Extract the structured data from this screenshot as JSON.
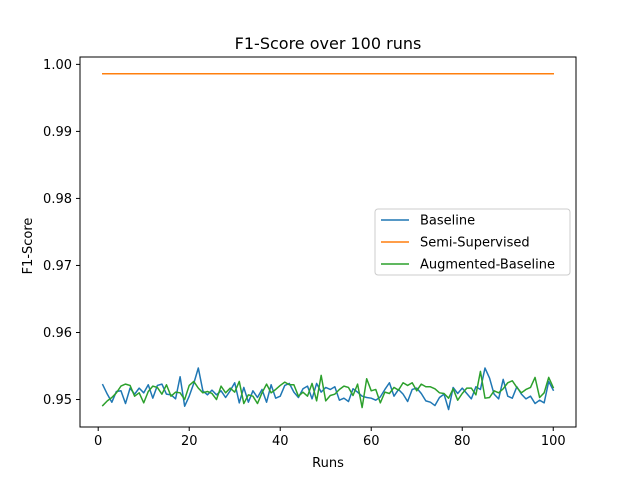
{
  "chart_data": {
    "type": "line",
    "title": "F1-Score over 100 runs",
    "xlabel": "Runs",
    "ylabel": "F1-Score",
    "xlim": [
      -4,
      105
    ],
    "ylim": [
      0.9459,
      1.0011
    ],
    "xticks": [
      0,
      20,
      40,
      60,
      80,
      100
    ],
    "xtick_labels": [
      "0",
      "20",
      "40",
      "60",
      "80",
      "100"
    ],
    "yticks": [
      0.95,
      0.96,
      0.97,
      0.98,
      0.99,
      1.0
    ],
    "ytick_labels": [
      "0.95",
      "0.96",
      "0.97",
      "0.98",
      "0.99",
      "1.00"
    ],
    "grid": false,
    "legend_position": "center-right",
    "x": [
      1,
      2,
      3,
      4,
      5,
      6,
      7,
      8,
      9,
      10,
      11,
      12,
      13,
      14,
      15,
      16,
      17,
      18,
      19,
      20,
      21,
      22,
      23,
      24,
      25,
      26,
      27,
      28,
      29,
      30,
      31,
      32,
      33,
      34,
      35,
      36,
      37,
      38,
      39,
      40,
      41,
      42,
      43,
      44,
      45,
      46,
      47,
      48,
      49,
      50,
      51,
      52,
      53,
      54,
      55,
      56,
      57,
      58,
      59,
      60,
      61,
      62,
      63,
      64,
      65,
      66,
      67,
      68,
      69,
      70,
      71,
      72,
      73,
      74,
      75,
      76,
      77,
      78,
      79,
      80,
      81,
      82,
      83,
      84,
      85,
      86,
      87,
      88,
      89,
      90,
      91,
      92,
      93,
      94,
      95,
      96,
      97,
      98,
      99,
      100
    ],
    "series": [
      {
        "name": "Baseline",
        "color": "#1f77b4",
        "values": [
          0.9522,
          0.9508,
          0.9496,
          0.9512,
          0.9513,
          0.9494,
          0.9517,
          0.9508,
          0.9517,
          0.951,
          0.9522,
          0.9502,
          0.9521,
          0.9523,
          0.9508,
          0.9507,
          0.9501,
          0.9534,
          0.949,
          0.9505,
          0.9524,
          0.9547,
          0.9513,
          0.9507,
          0.9514,
          0.9507,
          0.9513,
          0.9503,
          0.9513,
          0.9525,
          0.9495,
          0.9518,
          0.9496,
          0.9513,
          0.9503,
          0.9515,
          0.9496,
          0.9522,
          0.9502,
          0.9505,
          0.9521,
          0.9524,
          0.9511,
          0.9503,
          0.9516,
          0.952,
          0.9501,
          0.9524,
          0.9511,
          0.9518,
          0.9515,
          0.9519,
          0.9499,
          0.9502,
          0.9497,
          0.9516,
          0.9511,
          0.9505,
          0.9503,
          0.9502,
          0.9499,
          0.9504,
          0.9515,
          0.9525,
          0.9505,
          0.9515,
          0.9508,
          0.9497,
          0.9515,
          0.9517,
          0.9509,
          0.9498,
          0.9496,
          0.9491,
          0.9503,
          0.9508,
          0.9485,
          0.9518,
          0.9509,
          0.9517,
          0.9509,
          0.9501,
          0.9519,
          0.9515,
          0.9547,
          0.9532,
          0.9508,
          0.9501,
          0.953,
          0.9505,
          0.9502,
          0.9519,
          0.9508,
          0.9501,
          0.9505,
          0.9494,
          0.9499,
          0.9495,
          0.9527,
          0.9514
        ]
      },
      {
        "name": "Semi-Supervised",
        "color": "#ff7f0e",
        "values": [
          0.9986,
          0.9986,
          0.9986,
          0.9986,
          0.9986,
          0.9986,
          0.9986,
          0.9986,
          0.9986,
          0.9986,
          0.9986,
          0.9986,
          0.9986,
          0.9986,
          0.9986,
          0.9986,
          0.9986,
          0.9986,
          0.9986,
          0.9986,
          0.9986,
          0.9986,
          0.9986,
          0.9986,
          0.9986,
          0.9986,
          0.9986,
          0.9986,
          0.9986,
          0.9986,
          0.9986,
          0.9986,
          0.9986,
          0.9986,
          0.9986,
          0.9986,
          0.9986,
          0.9986,
          0.9986,
          0.9986,
          0.9986,
          0.9986,
          0.9986,
          0.9986,
          0.9986,
          0.9986,
          0.9986,
          0.9986,
          0.9986,
          0.9986,
          0.9986,
          0.9986,
          0.9986,
          0.9986,
          0.9986,
          0.9986,
          0.9986,
          0.9986,
          0.9986,
          0.9986,
          0.9986,
          0.9986,
          0.9986,
          0.9986,
          0.9986,
          0.9986,
          0.9986,
          0.9986,
          0.9986,
          0.9986,
          0.9986,
          0.9986,
          0.9986,
          0.9986,
          0.9986,
          0.9986,
          0.9986,
          0.9986,
          0.9986,
          0.9986,
          0.9986,
          0.9986,
          0.9986,
          0.9986,
          0.9986,
          0.9986,
          0.9986,
          0.9986,
          0.9986,
          0.9986,
          0.9986,
          0.9986,
          0.9986,
          0.9986,
          0.9986,
          0.9986,
          0.9986,
          0.9986,
          0.9986,
          0.9986
        ]
      },
      {
        "name": "Augmented-Baseline",
        "color": "#2ca02c",
        "values": [
          0.9491,
          0.9498,
          0.9503,
          0.951,
          0.952,
          0.9523,
          0.9521,
          0.9505,
          0.951,
          0.9495,
          0.9512,
          0.952,
          0.9518,
          0.9508,
          0.9522,
          0.9505,
          0.9511,
          0.951,
          0.95,
          0.9521,
          0.9527,
          0.9517,
          0.951,
          0.9512,
          0.9509,
          0.95,
          0.952,
          0.951,
          0.9517,
          0.9511,
          0.9527,
          0.9494,
          0.9507,
          0.9505,
          0.9494,
          0.951,
          0.9523,
          0.951,
          0.9515,
          0.9521,
          0.9526,
          0.9522,
          0.9522,
          0.9505,
          0.9511,
          0.9505,
          0.9524,
          0.9498,
          0.9536,
          0.9498,
          0.9506,
          0.9508,
          0.9515,
          0.952,
          0.9518,
          0.9506,
          0.9523,
          0.9488,
          0.9531,
          0.9513,
          0.9515,
          0.9495,
          0.9511,
          0.9509,
          0.9518,
          0.9514,
          0.9525,
          0.9521,
          0.9525,
          0.9513,
          0.9523,
          0.9519,
          0.9519,
          0.9516,
          0.951,
          0.9509,
          0.9502,
          0.9516,
          0.9499,
          0.9509,
          0.9517,
          0.9517,
          0.9507,
          0.9542,
          0.9502,
          0.9503,
          0.9513,
          0.951,
          0.9516,
          0.9525,
          0.9528,
          0.9518,
          0.951,
          0.9515,
          0.9518,
          0.9533,
          0.9503,
          0.951,
          0.9533,
          0.9518
        ]
      }
    ]
  }
}
